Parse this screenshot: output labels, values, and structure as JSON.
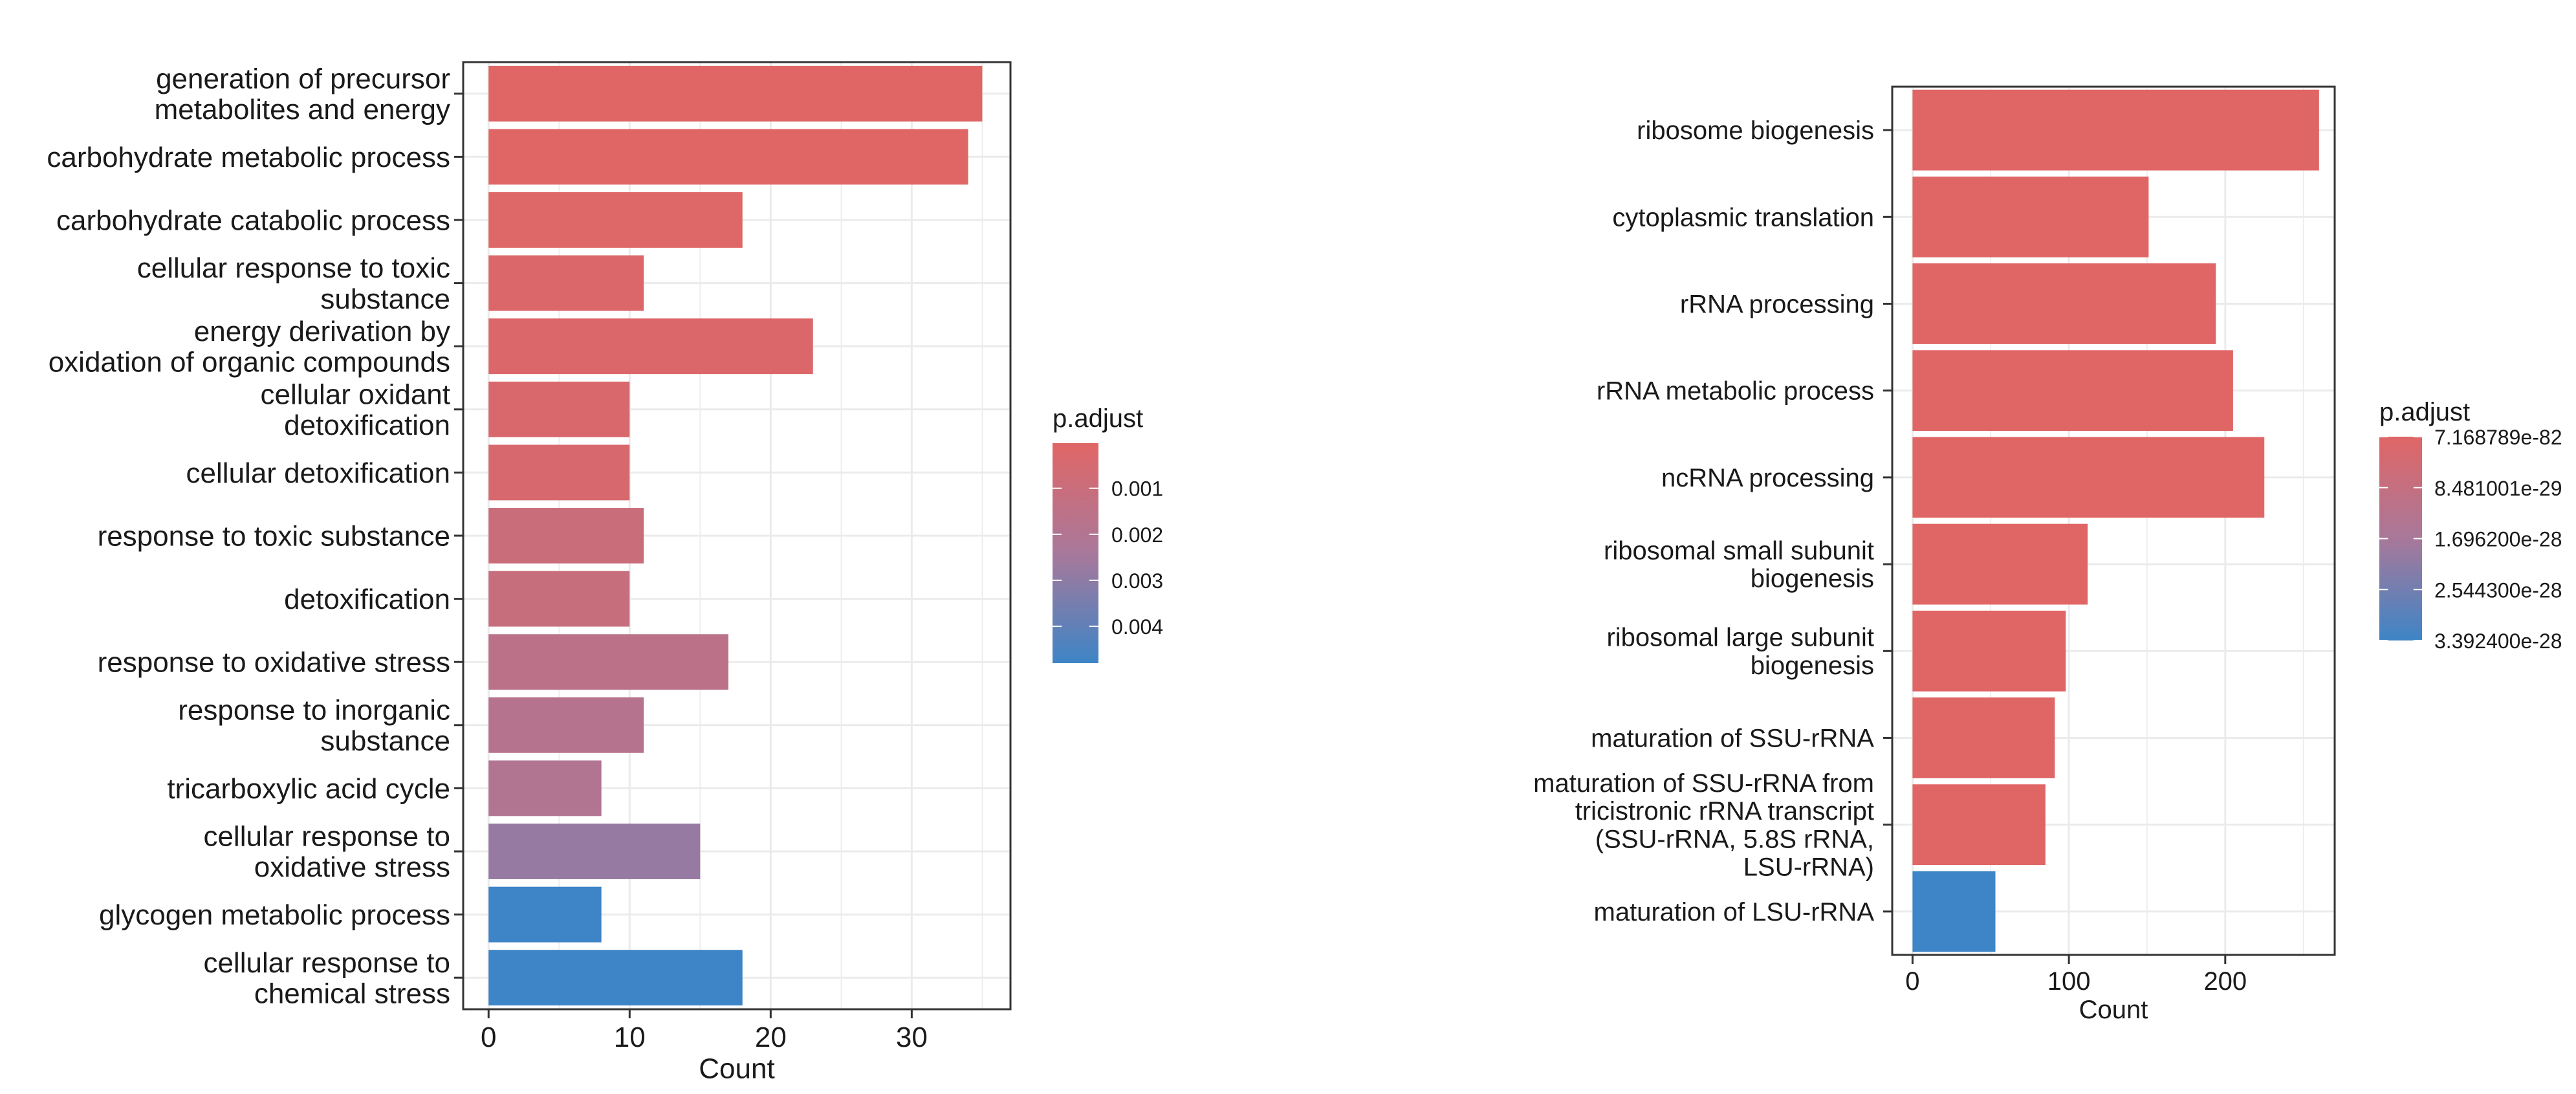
{
  "chart_data": [
    {
      "type": "bar",
      "orientation": "horizontal",
      "xlabel": "Count",
      "xlim": [
        -1.8,
        37.0
      ],
      "xticks": [
        0,
        10,
        20,
        30
      ],
      "grid": true,
      "legend_placement": "right",
      "categories": [
        "generation of precursor\nmetabolites and energy",
        "carbohydrate metabolic process",
        "carbohydrate catabolic process",
        "cellular response to toxic\nsubstance",
        "energy derivation by\noxidation of organic compounds",
        "cellular oxidant\ndetoxification",
        "cellular detoxification",
        "response to toxic substance",
        "detoxification",
        "response to oxidative stress",
        "response to inorganic\nsubstance",
        "tricarboxylic acid cycle",
        "cellular response to\noxidative stress",
        "glycogen metabolic process",
        "cellular response to\nchemical stress"
      ],
      "values": [
        35,
        34,
        18,
        11,
        23,
        10,
        10,
        11,
        10,
        17,
        11,
        8,
        15,
        8,
        18
      ],
      "p_adjust": [
        2e-05,
        2e-05,
        0.0001,
        0.0002,
        0.0002,
        0.0003,
        0.0004,
        0.001,
        0.0011,
        0.0016,
        0.0018,
        0.002,
        0.0028,
        0.0048,
        0.0048
      ],
      "colorbar": {
        "title": "p.adjust",
        "min": 2e-05,
        "max": 0.0048,
        "ticks": [
          0.001,
          0.002,
          0.003,
          0.004
        ],
        "tick_labels": [
          "0.001",
          "0.002",
          "0.003",
          "0.004"
        ],
        "low_color": "#e06666",
        "high_color": "#3d85c6"
      }
    },
    {
      "type": "bar",
      "orientation": "horizontal",
      "xlabel": "Count",
      "xlim": [
        -13,
        270
      ],
      "xticks": [
        0,
        100,
        200
      ],
      "grid": true,
      "legend_placement": "right",
      "categories": [
        "ribosome biogenesis",
        "cytoplasmic translation",
        "rRNA processing",
        "rRNA metabolic process",
        "ncRNA processing",
        "ribosomal small subunit\nbiogenesis",
        "ribosomal large subunit\nbiogenesis",
        "maturation of SSU-rRNA",
        "maturation of SSU-rRNA from\ntricistronic rRNA transcript\n(SSU-rRNA, 5.8S rRNA,\nLSU-rRNA)",
        "maturation of LSU-rRNA"
      ],
      "values": [
        260,
        151,
        194,
        205,
        225,
        112,
        98,
        91,
        85,
        53
      ],
      "p_adjust": [
        7.168789e-82,
        1e-60,
        1e-55,
        1e-52,
        1e-50,
        1e-45,
        1e-42,
        1e-38,
        1e-35,
        3.3924e-28
      ],
      "colorbar": {
        "title": "p.adjust",
        "tick_labels": [
          "7.168789e-82",
          "8.481001e-29",
          "1.696200e-28",
          "2.544300e-28",
          "3.392400e-28"
        ],
        "low_color": "#e06666",
        "high_color": "#3d85c6"
      }
    }
  ]
}
